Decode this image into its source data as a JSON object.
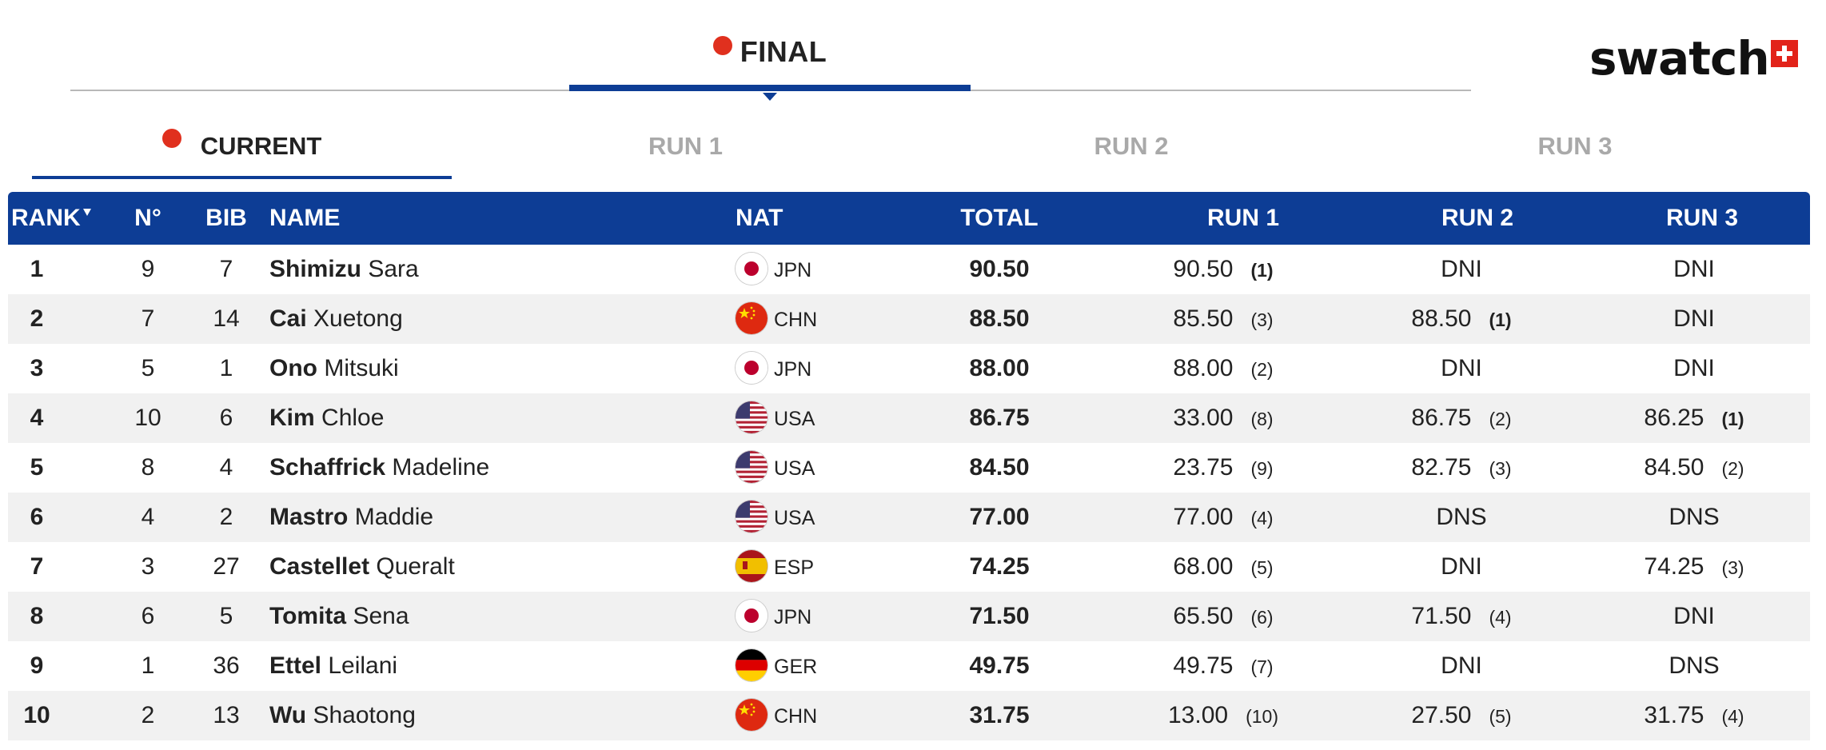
{
  "header": {
    "final_label": "FINAL",
    "logo_text": "swatch"
  },
  "run_tabs": [
    {
      "label": "CURRENT",
      "active": true
    },
    {
      "label": "RUN 1",
      "active": false
    },
    {
      "label": "RUN 2",
      "active": false
    },
    {
      "label": "RUN 3",
      "active": false
    }
  ],
  "table": {
    "columns": {
      "rank": "RANK",
      "no": "N°",
      "bib": "BIB",
      "name": "NAME",
      "nat": "NAT",
      "total": "TOTAL",
      "run1": "RUN 1",
      "run2": "RUN 2",
      "run3": "RUN 3"
    },
    "rows": [
      {
        "rank": "1",
        "no": "9",
        "bib": "7",
        "last": "Shimizu",
        "first": "Sara",
        "nat": "JPN",
        "total": "90.50",
        "run1": {
          "score": "90.50",
          "pos": "(1)",
          "best": true
        },
        "run2": {
          "score": "DNI",
          "pos": "",
          "best": false
        },
        "run3": {
          "score": "DNI",
          "pos": "",
          "best": false
        }
      },
      {
        "rank": "2",
        "no": "7",
        "bib": "14",
        "last": "Cai",
        "first": "Xuetong",
        "nat": "CHN",
        "total": "88.50",
        "run1": {
          "score": "85.50",
          "pos": "(3)",
          "best": false
        },
        "run2": {
          "score": "88.50",
          "pos": "(1)",
          "best": true
        },
        "run3": {
          "score": "DNI",
          "pos": "",
          "best": false
        }
      },
      {
        "rank": "3",
        "no": "5",
        "bib": "1",
        "last": "Ono",
        "first": "Mitsuki",
        "nat": "JPN",
        "total": "88.00",
        "run1": {
          "score": "88.00",
          "pos": "(2)",
          "best": false
        },
        "run2": {
          "score": "DNI",
          "pos": "",
          "best": false
        },
        "run3": {
          "score": "DNI",
          "pos": "",
          "best": false
        }
      },
      {
        "rank": "4",
        "no": "10",
        "bib": "6",
        "last": "Kim",
        "first": "Chloe",
        "nat": "USA",
        "total": "86.75",
        "run1": {
          "score": "33.00",
          "pos": "(8)",
          "best": false
        },
        "run2": {
          "score": "86.75",
          "pos": "(2)",
          "best": false
        },
        "run3": {
          "score": "86.25",
          "pos": "(1)",
          "best": true
        }
      },
      {
        "rank": "5",
        "no": "8",
        "bib": "4",
        "last": "Schaffrick",
        "first": "Madeline",
        "nat": "USA",
        "total": "84.50",
        "run1": {
          "score": "23.75",
          "pos": "(9)",
          "best": false
        },
        "run2": {
          "score": "82.75",
          "pos": "(3)",
          "best": false
        },
        "run3": {
          "score": "84.50",
          "pos": "(2)",
          "best": false
        }
      },
      {
        "rank": "6",
        "no": "4",
        "bib": "2",
        "last": "Mastro",
        "first": "Maddie",
        "nat": "USA",
        "total": "77.00",
        "run1": {
          "score": "77.00",
          "pos": "(4)",
          "best": false
        },
        "run2": {
          "score": "DNS",
          "pos": "",
          "best": false
        },
        "run3": {
          "score": "DNS",
          "pos": "",
          "best": false
        }
      },
      {
        "rank": "7",
        "no": "3",
        "bib": "27",
        "last": "Castellet",
        "first": "Queralt",
        "nat": "ESP",
        "total": "74.25",
        "run1": {
          "score": "68.00",
          "pos": "(5)",
          "best": false
        },
        "run2": {
          "score": "DNI",
          "pos": "",
          "best": false
        },
        "run3": {
          "score": "74.25",
          "pos": "(3)",
          "best": false
        }
      },
      {
        "rank": "8",
        "no": "6",
        "bib": "5",
        "last": "Tomita",
        "first": "Sena",
        "nat": "JPN",
        "total": "71.50",
        "run1": {
          "score": "65.50",
          "pos": "(6)",
          "best": false
        },
        "run2": {
          "score": "71.50",
          "pos": "(4)",
          "best": false
        },
        "run3": {
          "score": "DNI",
          "pos": "",
          "best": false
        }
      },
      {
        "rank": "9",
        "no": "1",
        "bib": "36",
        "last": "Ettel",
        "first": "Leilani",
        "nat": "GER",
        "total": "49.75",
        "run1": {
          "score": "49.75",
          "pos": "(7)",
          "best": false
        },
        "run2": {
          "score": "DNI",
          "pos": "",
          "best": false
        },
        "run3": {
          "score": "DNS",
          "pos": "",
          "best": false
        }
      },
      {
        "rank": "10",
        "no": "2",
        "bib": "13",
        "last": "Wu",
        "first": "Shaotong",
        "nat": "CHN",
        "total": "31.75",
        "run1": {
          "score": "13.00",
          "pos": "(10)",
          "best": false
        },
        "run2": {
          "score": "27.50",
          "pos": "(5)",
          "best": false
        },
        "run3": {
          "score": "31.75",
          "pos": "(4)",
          "best": false
        }
      }
    ]
  },
  "colors": {
    "header_blue": "#0d3d95",
    "live_dot": "#e0301e",
    "row_alt": "#f1f1f1",
    "inactive_tab": "#a9a9a9"
  }
}
